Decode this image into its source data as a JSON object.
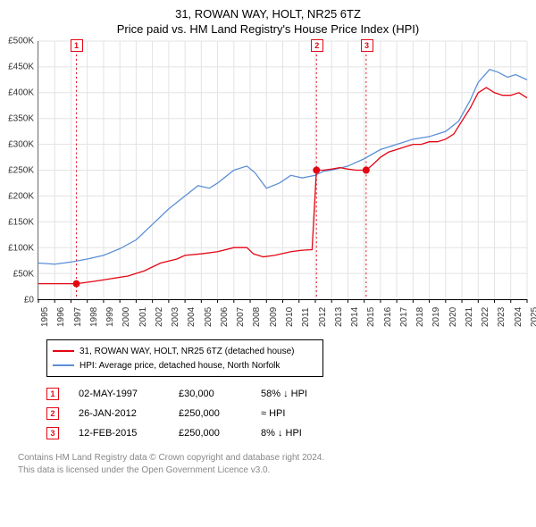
{
  "title_line1": "31, ROWAN WAY, HOLT, NR25 6TZ",
  "title_line2": "Price paid vs. HM Land Registry's House Price Index (HPI)",
  "chart": {
    "type": "line",
    "background_color": "#ffffff",
    "grid_color": "#e3e3e3",
    "axis_color": "#000000",
    "ymin": 0,
    "ymax": 500000,
    "ytick_step": 50000,
    "y_prefix": "£",
    "y_ticks": [
      "£0",
      "£50K",
      "£100K",
      "£150K",
      "£200K",
      "£250K",
      "£300K",
      "£350K",
      "£400K",
      "£450K",
      "£500K"
    ],
    "xmin": 1995,
    "xmax": 2025,
    "x_ticks": [
      1995,
      1996,
      1997,
      1998,
      1999,
      2000,
      2001,
      2002,
      2003,
      2004,
      2005,
      2006,
      2007,
      2008,
      2009,
      2010,
      2011,
      2012,
      2013,
      2014,
      2015,
      2016,
      2017,
      2018,
      2019,
      2020,
      2021,
      2022,
      2023,
      2024,
      2025
    ],
    "label_fontsize": 10,
    "line_width": 1.3,
    "series_price": {
      "label": "31, ROWAN WAY, HOLT, NR25 6TZ (detached house)",
      "color": "#e30613",
      "points": [
        [
          1995.0,
          30000
        ],
        [
          1996.0,
          30000
        ],
        [
          1997.33,
          30000
        ],
        [
          1997.8,
          32000
        ],
        [
          1998.5,
          35000
        ],
        [
          1999.5,
          40000
        ],
        [
          2000.5,
          45000
        ],
        [
          2001.5,
          55000
        ],
        [
          2002.5,
          70000
        ],
        [
          2003.5,
          78000
        ],
        [
          2004.0,
          85000
        ],
        [
          2005.0,
          88000
        ],
        [
          2006.0,
          92000
        ],
        [
          2007.0,
          100000
        ],
        [
          2007.8,
          100000
        ],
        [
          2008.2,
          88000
        ],
        [
          2008.8,
          82000
        ],
        [
          2009.5,
          85000
        ],
        [
          2010.5,
          92000
        ],
        [
          2011.2,
          95000
        ],
        [
          2011.8,
          96000
        ],
        [
          2012.07,
          250000
        ],
        [
          2012.5,
          250000
        ],
        [
          2013.0,
          252000
        ],
        [
          2013.5,
          255000
        ],
        [
          2014.0,
          252000
        ],
        [
          2014.5,
          250000
        ],
        [
          2015.12,
          250000
        ],
        [
          2015.5,
          260000
        ],
        [
          2016.0,
          275000
        ],
        [
          2016.5,
          285000
        ],
        [
          2017.0,
          290000
        ],
        [
          2017.5,
          295000
        ],
        [
          2018.0,
          300000
        ],
        [
          2018.5,
          300000
        ],
        [
          2019.0,
          305000
        ],
        [
          2019.5,
          305000
        ],
        [
          2020.0,
          310000
        ],
        [
          2020.5,
          320000
        ],
        [
          2021.0,
          345000
        ],
        [
          2021.5,
          370000
        ],
        [
          2022.0,
          400000
        ],
        [
          2022.5,
          410000
        ],
        [
          2023.0,
          400000
        ],
        [
          2023.5,
          395000
        ],
        [
          2024.0,
          395000
        ],
        [
          2024.5,
          400000
        ],
        [
          2025.0,
          390000
        ]
      ]
    },
    "series_hpi": {
      "label": "HPI: Average price, detached house, North Norfolk",
      "color": "#5b8fd6",
      "points": [
        [
          1995.0,
          70000
        ],
        [
          1996.0,
          68000
        ],
        [
          1997.0,
          72000
        ],
        [
          1998.0,
          78000
        ],
        [
          1999.0,
          85000
        ],
        [
          2000.0,
          98000
        ],
        [
          2001.0,
          115000
        ],
        [
          2002.0,
          145000
        ],
        [
          2003.0,
          175000
        ],
        [
          2004.0,
          200000
        ],
        [
          2004.8,
          220000
        ],
        [
          2005.5,
          215000
        ],
        [
          2006.0,
          225000
        ],
        [
          2007.0,
          250000
        ],
        [
          2007.8,
          258000
        ],
        [
          2008.3,
          245000
        ],
        [
          2009.0,
          215000
        ],
        [
          2009.8,
          225000
        ],
        [
          2010.5,
          240000
        ],
        [
          2011.2,
          235000
        ],
        [
          2012.0,
          240000
        ],
        [
          2012.5,
          248000
        ],
        [
          2013.0,
          250000
        ],
        [
          2014.0,
          258000
        ],
        [
          2015.0,
          272000
        ],
        [
          2016.0,
          290000
        ],
        [
          2017.0,
          300000
        ],
        [
          2018.0,
          310000
        ],
        [
          2019.0,
          315000
        ],
        [
          2020.0,
          325000
        ],
        [
          2020.8,
          345000
        ],
        [
          2021.5,
          385000
        ],
        [
          2022.0,
          420000
        ],
        [
          2022.7,
          445000
        ],
        [
          2023.2,
          440000
        ],
        [
          2023.8,
          430000
        ],
        [
          2024.3,
          435000
        ],
        [
          2025.0,
          425000
        ]
      ]
    },
    "transactions_markers": [
      {
        "n": "1",
        "x": 1997.33,
        "y": 30000,
        "color": "#e30613",
        "dot": true
      },
      {
        "n": "2",
        "x": 2012.07,
        "y": 250000,
        "color": "#e30613",
        "dot": true
      },
      {
        "n": "3",
        "x": 2015.12,
        "y": 250000,
        "color": "#e30613",
        "dot": true
      }
    ],
    "marker_line_color": "#e30613",
    "marker_line_dash": "2,3"
  },
  "legend": {
    "border_color": "#000000",
    "items": [
      {
        "color": "#e30613",
        "label": "31, ROWAN WAY, HOLT, NR25 6TZ (detached house)"
      },
      {
        "color": "#5b8fd6",
        "label": "HPI: Average price, detached house, North Norfolk"
      }
    ]
  },
  "transactions_table": {
    "marker_color": "#e30613",
    "rows": [
      {
        "n": "1",
        "date": "02-MAY-1997",
        "price": "£30,000",
        "delta": "58% ↓ HPI"
      },
      {
        "n": "2",
        "date": "26-JAN-2012",
        "price": "£250,000",
        "delta": "≈ HPI"
      },
      {
        "n": "3",
        "date": "12-FEB-2015",
        "price": "£250,000",
        "delta": "8% ↓ HPI"
      }
    ]
  },
  "footer_line1": "Contains HM Land Registry data © Crown copyright and database right 2024.",
  "footer_line2": "This data is licensed under the Open Government Licence v3.0."
}
